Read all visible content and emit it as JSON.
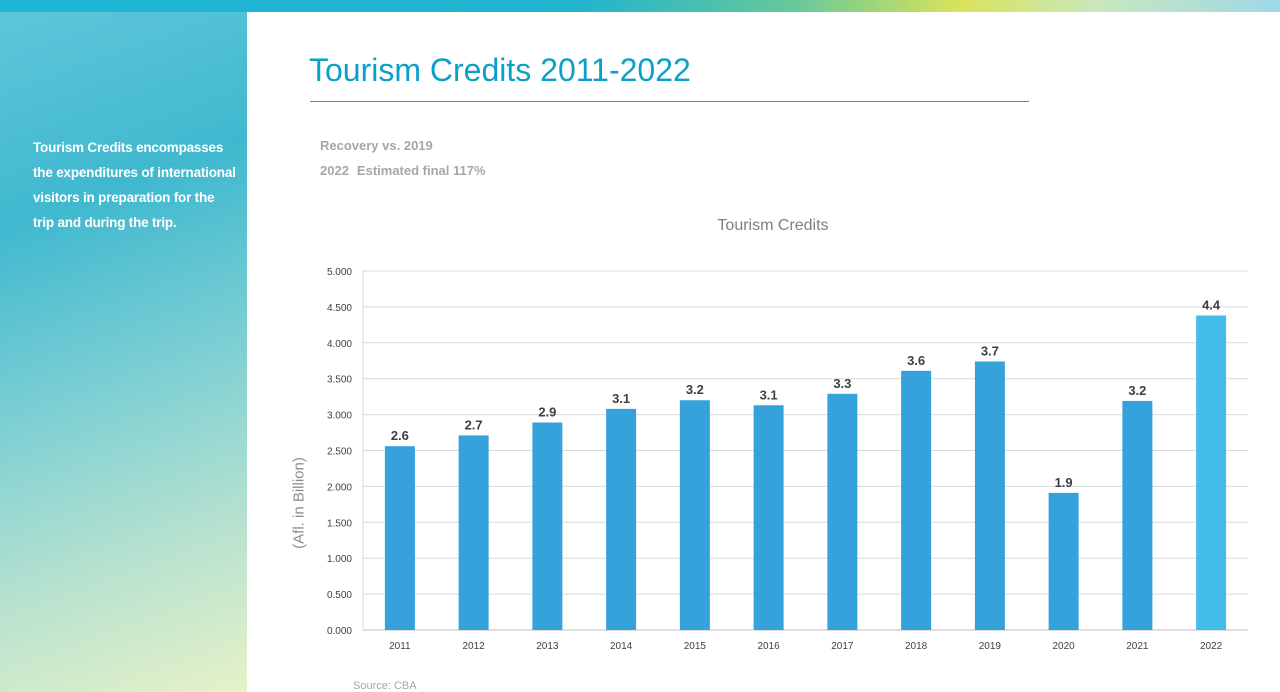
{
  "page": {
    "title": "Tourism Credits 2011-2022",
    "sidebar_text": "Tourism Credits encompasses the expenditures of international visitors in preparation for the trip and during the trip.",
    "recovery_heading": "Recovery vs. 2019",
    "recovery_year": "2022",
    "recovery_value": "Estimated final 117%",
    "source": "Source: CBA"
  },
  "colors": {
    "accent": "#0aa0c8",
    "bar": "#35a2db",
    "bar_highlight": "#44bce9"
  },
  "chart_data": {
    "type": "bar",
    "title": "Tourism Credits",
    "xlabel": "",
    "ylabel": "(Afl. in Billion)",
    "categories": [
      "2011",
      "2012",
      "2013",
      "2014",
      "2015",
      "2016",
      "2017",
      "2018",
      "2019",
      "2020",
      "2021",
      "2022"
    ],
    "values": [
      2.56,
      2.71,
      2.89,
      3.08,
      3.2,
      3.13,
      3.29,
      3.61,
      3.74,
      1.91,
      3.19,
      4.38
    ],
    "data_labels": [
      "2.6",
      "2.7",
      "2.9",
      "3.1",
      "3.2",
      "3.1",
      "3.3",
      "3.6",
      "3.7",
      "1.9",
      "3.2",
      "4.4"
    ],
    "ylim": [
      0,
      5
    ],
    "yticks": [
      "0.000",
      "0.500",
      "1.000",
      "1.500",
      "2.000",
      "2.500",
      "3.000",
      "3.500",
      "4.000",
      "4.500",
      "5.000"
    ],
    "grid": true,
    "highlight_index": 11
  }
}
